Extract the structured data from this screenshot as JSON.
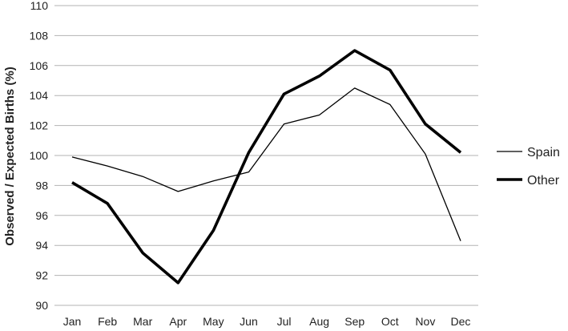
{
  "chart_data": {
    "type": "line",
    "title": "",
    "xlabel": "",
    "ylabel": "Observed / Expected Births (%)",
    "categories": [
      "Jan",
      "Feb",
      "Mar",
      "Apr",
      "May",
      "Jun",
      "Jul",
      "Aug",
      "Sep",
      "Oct",
      "Nov",
      "Dec"
    ],
    "ylim": [
      90,
      110
    ],
    "yticks": [
      90,
      92,
      94,
      96,
      98,
      100,
      102,
      104,
      106,
      108,
      110
    ],
    "grid": "horizontal",
    "legend_position": "right",
    "series": [
      {
        "name": "Spain",
        "style": "thin",
        "color": "#000000",
        "values": [
          99.9,
          99.3,
          98.6,
          97.6,
          98.3,
          98.9,
          102.1,
          102.7,
          104.5,
          103.4,
          100.1,
          94.3
        ]
      },
      {
        "name": "Other",
        "style": "thick",
        "color": "#000000",
        "values": [
          98.2,
          96.8,
          93.5,
          91.5,
          95.0,
          100.2,
          104.1,
          105.3,
          107.0,
          105.7,
          102.1,
          100.2
        ]
      }
    ]
  }
}
